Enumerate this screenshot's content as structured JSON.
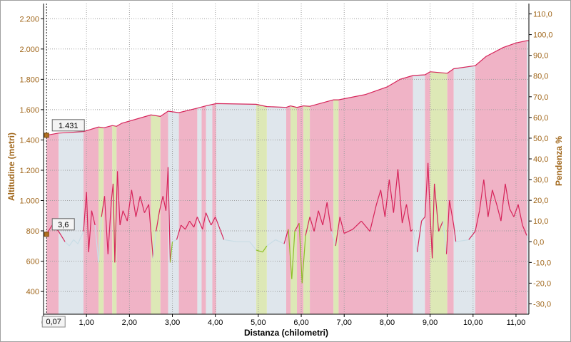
{
  "chart_data": {
    "type": "area",
    "xlabel": "Distanza (chilometri)",
    "ylabel_left": "Altitudine (metri)",
    "ylabel_right": "Pendenza %",
    "xlim": [
      0,
      11.3
    ],
    "ylim_left": [
      250,
      2300
    ],
    "ylim_right": [
      -35,
      115
    ],
    "x_ticks": [
      {
        "value": 0,
        "label": "0"
      },
      {
        "value": 1,
        "label": "1,00"
      },
      {
        "value": 2,
        "label": "2,00"
      },
      {
        "value": 3,
        "label": "3,00"
      },
      {
        "value": 4,
        "label": "4,00"
      },
      {
        "value": 5,
        "label": "5,00"
      },
      {
        "value": 6,
        "label": "6,00"
      },
      {
        "value": 7,
        "label": "7,00"
      },
      {
        "value": 8,
        "label": "8,00"
      },
      {
        "value": 9,
        "label": "9,00"
      },
      {
        "value": 10,
        "label": "10,00"
      },
      {
        "value": 11,
        "label": "11,00"
      }
    ],
    "y_left_ticks": [
      {
        "value": 400,
        "label": "400"
      },
      {
        "value": 600,
        "label": "600"
      },
      {
        "value": 800,
        "label": "800"
      },
      {
        "value": 1000,
        "label": "1.000"
      },
      {
        "value": 1200,
        "label": "1.200"
      },
      {
        "value": 1400,
        "label": "1.400"
      },
      {
        "value": 1600,
        "label": "1.600"
      },
      {
        "value": 1800,
        "label": "1.800"
      },
      {
        "value": 2000,
        "label": "2.000"
      },
      {
        "value": 2200,
        "label": "2.200"
      }
    ],
    "y_right_ticks": [
      {
        "value": -30,
        "label": "-30,0"
      },
      {
        "value": -20,
        "label": "-20,0"
      },
      {
        "value": -10,
        "label": "-10,0"
      },
      {
        "value": 0,
        "label": "0,0"
      },
      {
        "value": 10,
        "label": "10,0"
      },
      {
        "value": 20,
        "label": "20,0"
      },
      {
        "value": 30,
        "label": "30,0"
      },
      {
        "value": 40,
        "label": "40,0"
      },
      {
        "value": 50,
        "label": "50,0"
      },
      {
        "value": 60,
        "label": "60,0"
      },
      {
        "value": 70,
        "label": "70,0"
      },
      {
        "value": 80,
        "label": "80,0"
      },
      {
        "value": 90,
        "label": "90,0"
      },
      {
        "value": 100,
        "label": "100,0"
      },
      {
        "value": 110,
        "label": "110,0"
      }
    ],
    "grid": true,
    "colors": {
      "climb": "#f0b3c6",
      "flat": "#dfe6ec",
      "descent": "#dde8b6",
      "climb_line": "#d6245a",
      "descent_line": "#8cbf26",
      "flat_line": "#c9dde6",
      "axis_title": "#a0661a",
      "grid": "#9e9e9e",
      "cursor": "#1a1a1a"
    },
    "segments": [
      {
        "x0": 0.07,
        "x1": 0.35,
        "kind": "climb"
      },
      {
        "x0": 0.35,
        "x1": 0.93,
        "kind": "flat"
      },
      {
        "x0": 0.93,
        "x1": 1.28,
        "kind": "climb"
      },
      {
        "x0": 1.28,
        "x1": 1.4,
        "kind": "descent"
      },
      {
        "x0": 1.4,
        "x1": 1.6,
        "kind": "climb"
      },
      {
        "x0": 1.6,
        "x1": 1.7,
        "kind": "descent"
      },
      {
        "x0": 1.7,
        "x1": 1.82,
        "kind": "climb"
      },
      {
        "x0": 1.82,
        "x1": 2.5,
        "kind": "climb"
      },
      {
        "x0": 2.5,
        "x1": 2.72,
        "kind": "descent"
      },
      {
        "x0": 2.72,
        "x1": 2.9,
        "kind": "climb"
      },
      {
        "x0": 2.9,
        "x1": 3.15,
        "kind": "flat"
      },
      {
        "x0": 3.15,
        "x1": 3.58,
        "kind": "climb"
      },
      {
        "x0": 3.58,
        "x1": 3.68,
        "kind": "flat"
      },
      {
        "x0": 3.68,
        "x1": 3.78,
        "kind": "climb"
      },
      {
        "x0": 3.78,
        "x1": 3.93,
        "kind": "flat"
      },
      {
        "x0": 3.93,
        "x1": 4.02,
        "kind": "climb"
      },
      {
        "x0": 4.02,
        "x1": 4.95,
        "kind": "flat"
      },
      {
        "x0": 4.95,
        "x1": 5.2,
        "kind": "descent"
      },
      {
        "x0": 5.2,
        "x1": 5.65,
        "kind": "flat"
      },
      {
        "x0": 5.65,
        "x1": 5.75,
        "kind": "climb"
      },
      {
        "x0": 5.75,
        "x1": 5.9,
        "kind": "descent"
      },
      {
        "x0": 5.9,
        "x1": 6.05,
        "kind": "climb"
      },
      {
        "x0": 6.05,
        "x1": 6.2,
        "kind": "descent"
      },
      {
        "x0": 6.2,
        "x1": 6.75,
        "kind": "climb"
      },
      {
        "x0": 6.75,
        "x1": 6.87,
        "kind": "descent"
      },
      {
        "x0": 6.87,
        "x1": 8.6,
        "kind": "climb"
      },
      {
        "x0": 8.6,
        "x1": 8.88,
        "kind": "flat"
      },
      {
        "x0": 8.88,
        "x1": 9.0,
        "kind": "climb"
      },
      {
        "x0": 9.0,
        "x1": 9.4,
        "kind": "descent"
      },
      {
        "x0": 9.4,
        "x1": 9.55,
        "kind": "climb"
      },
      {
        "x0": 9.55,
        "x1": 10.05,
        "kind": "flat"
      },
      {
        "x0": 10.05,
        "x1": 11.25,
        "kind": "climb"
      },
      {
        "x0": 11.25,
        "x1": 11.3,
        "kind": "flat"
      }
    ],
    "series": [
      {
        "axis": "left",
        "points": [
          [
            0.07,
            1431
          ],
          [
            0.35,
            1445
          ],
          [
            0.93,
            1455
          ],
          [
            1.28,
            1485
          ],
          [
            1.4,
            1480
          ],
          [
            1.6,
            1495
          ],
          [
            1.7,
            1490
          ],
          [
            1.82,
            1510
          ],
          [
            2.5,
            1565
          ],
          [
            2.72,
            1555
          ],
          [
            2.9,
            1590
          ],
          [
            3.15,
            1580
          ],
          [
            3.58,
            1610
          ],
          [
            3.78,
            1625
          ],
          [
            4.02,
            1640
          ],
          [
            4.95,
            1635
          ],
          [
            5.2,
            1620
          ],
          [
            5.65,
            1615
          ],
          [
            5.75,
            1625
          ],
          [
            5.9,
            1615
          ],
          [
            6.05,
            1625
          ],
          [
            6.2,
            1622
          ],
          [
            6.75,
            1665
          ],
          [
            6.87,
            1665
          ],
          [
            7.5,
            1700
          ],
          [
            8.0,
            1750
          ],
          [
            8.3,
            1800
          ],
          [
            8.6,
            1825
          ],
          [
            8.88,
            1830
          ],
          [
            9.0,
            1850
          ],
          [
            9.4,
            1840
          ],
          [
            9.55,
            1870
          ],
          [
            10.05,
            1890
          ],
          [
            10.3,
            1950
          ],
          [
            10.7,
            2010
          ],
          [
            11.0,
            2040
          ],
          [
            11.25,
            2055
          ],
          [
            11.3,
            2055
          ]
        ]
      },
      {
        "axis": "right",
        "points": [
          [
            0.07,
            3.6
          ],
          [
            0.2,
            8
          ],
          [
            0.35,
            5
          ],
          [
            0.5,
            0
          ],
          [
            0.6,
            -2
          ],
          [
            0.7,
            1
          ],
          [
            0.8,
            -1
          ],
          [
            0.93,
            5
          ],
          [
            1.0,
            24
          ],
          [
            1.05,
            -5
          ],
          [
            1.12,
            15
          ],
          [
            1.2,
            8
          ],
          [
            1.28,
            -10
          ],
          [
            1.35,
            12
          ],
          [
            1.42,
            22
          ],
          [
            1.5,
            -6
          ],
          [
            1.58,
            20
          ],
          [
            1.62,
            28
          ],
          [
            1.66,
            -10
          ],
          [
            1.72,
            34
          ],
          [
            1.78,
            8
          ],
          [
            1.85,
            15
          ],
          [
            1.95,
            10
          ],
          [
            2.05,
            25
          ],
          [
            2.15,
            12
          ],
          [
            2.25,
            22
          ],
          [
            2.35,
            14
          ],
          [
            2.45,
            18
          ],
          [
            2.55,
            -8
          ],
          [
            2.62,
            5
          ],
          [
            2.7,
            15
          ],
          [
            2.78,
            22
          ],
          [
            2.85,
            15
          ],
          [
            2.9,
            36
          ],
          [
            2.95,
            -10
          ],
          [
            3.0,
            0
          ],
          [
            3.1,
            1
          ],
          [
            3.2,
            8
          ],
          [
            3.3,
            6
          ],
          [
            3.4,
            10
          ],
          [
            3.5,
            7
          ],
          [
            3.58,
            12
          ],
          [
            3.7,
            6
          ],
          [
            3.78,
            14
          ],
          [
            3.9,
            8
          ],
          [
            4.0,
            12
          ],
          [
            4.2,
            1
          ],
          [
            4.5,
            0
          ],
          [
            4.8,
            0
          ],
          [
            4.95,
            -4
          ],
          [
            5.1,
            -5
          ],
          [
            5.2,
            -2
          ],
          [
            5.4,
            1
          ],
          [
            5.6,
            -1
          ],
          [
            5.7,
            6
          ],
          [
            5.78,
            -18
          ],
          [
            5.85,
            5
          ],
          [
            5.95,
            9
          ],
          [
            6.02,
            -20
          ],
          [
            6.1,
            3
          ],
          [
            6.2,
            12
          ],
          [
            6.3,
            5
          ],
          [
            6.4,
            15
          ],
          [
            6.5,
            8
          ],
          [
            6.6,
            19
          ],
          [
            6.7,
            5
          ],
          [
            6.8,
            -2
          ],
          [
            6.9,
            12
          ],
          [
            7.0,
            4
          ],
          [
            7.2,
            6
          ],
          [
            7.4,
            10
          ],
          [
            7.6,
            5
          ],
          [
            7.75,
            18
          ],
          [
            7.85,
            25
          ],
          [
            7.95,
            12
          ],
          [
            8.05,
            30
          ],
          [
            8.15,
            14
          ],
          [
            8.25,
            35
          ],
          [
            8.35,
            9
          ],
          [
            8.45,
            18
          ],
          [
            8.55,
            5
          ],
          [
            8.6,
            6
          ],
          [
            8.7,
            -5
          ],
          [
            8.8,
            10
          ],
          [
            8.88,
            12
          ],
          [
            8.95,
            38
          ],
          [
            9.0,
            14
          ],
          [
            9.05,
            -8
          ],
          [
            9.1,
            28
          ],
          [
            9.2,
            5
          ],
          [
            9.3,
            10
          ],
          [
            9.38,
            -6
          ],
          [
            9.45,
            20
          ],
          [
            9.55,
            8
          ],
          [
            9.6,
            0
          ],
          [
            9.9,
            1
          ],
          [
            10.05,
            5
          ],
          [
            10.15,
            15
          ],
          [
            10.25,
            30
          ],
          [
            10.35,
            12
          ],
          [
            10.45,
            25
          ],
          [
            10.55,
            18
          ],
          [
            10.65,
            10
          ],
          [
            10.75,
            28
          ],
          [
            10.85,
            16
          ],
          [
            10.95,
            12
          ],
          [
            11.05,
            18
          ],
          [
            11.15,
            8
          ],
          [
            11.25,
            3
          ],
          [
            11.3,
            1
          ]
        ]
      }
    ],
    "markers": [
      {
        "axis": "left",
        "x": 0.07,
        "y": 1431,
        "label": "1.431"
      },
      {
        "axis": "right",
        "x": 0.07,
        "y": 3.6,
        "label": "3,6"
      }
    ],
    "cursor": {
      "x": 0.07,
      "label": "0,07"
    }
  }
}
